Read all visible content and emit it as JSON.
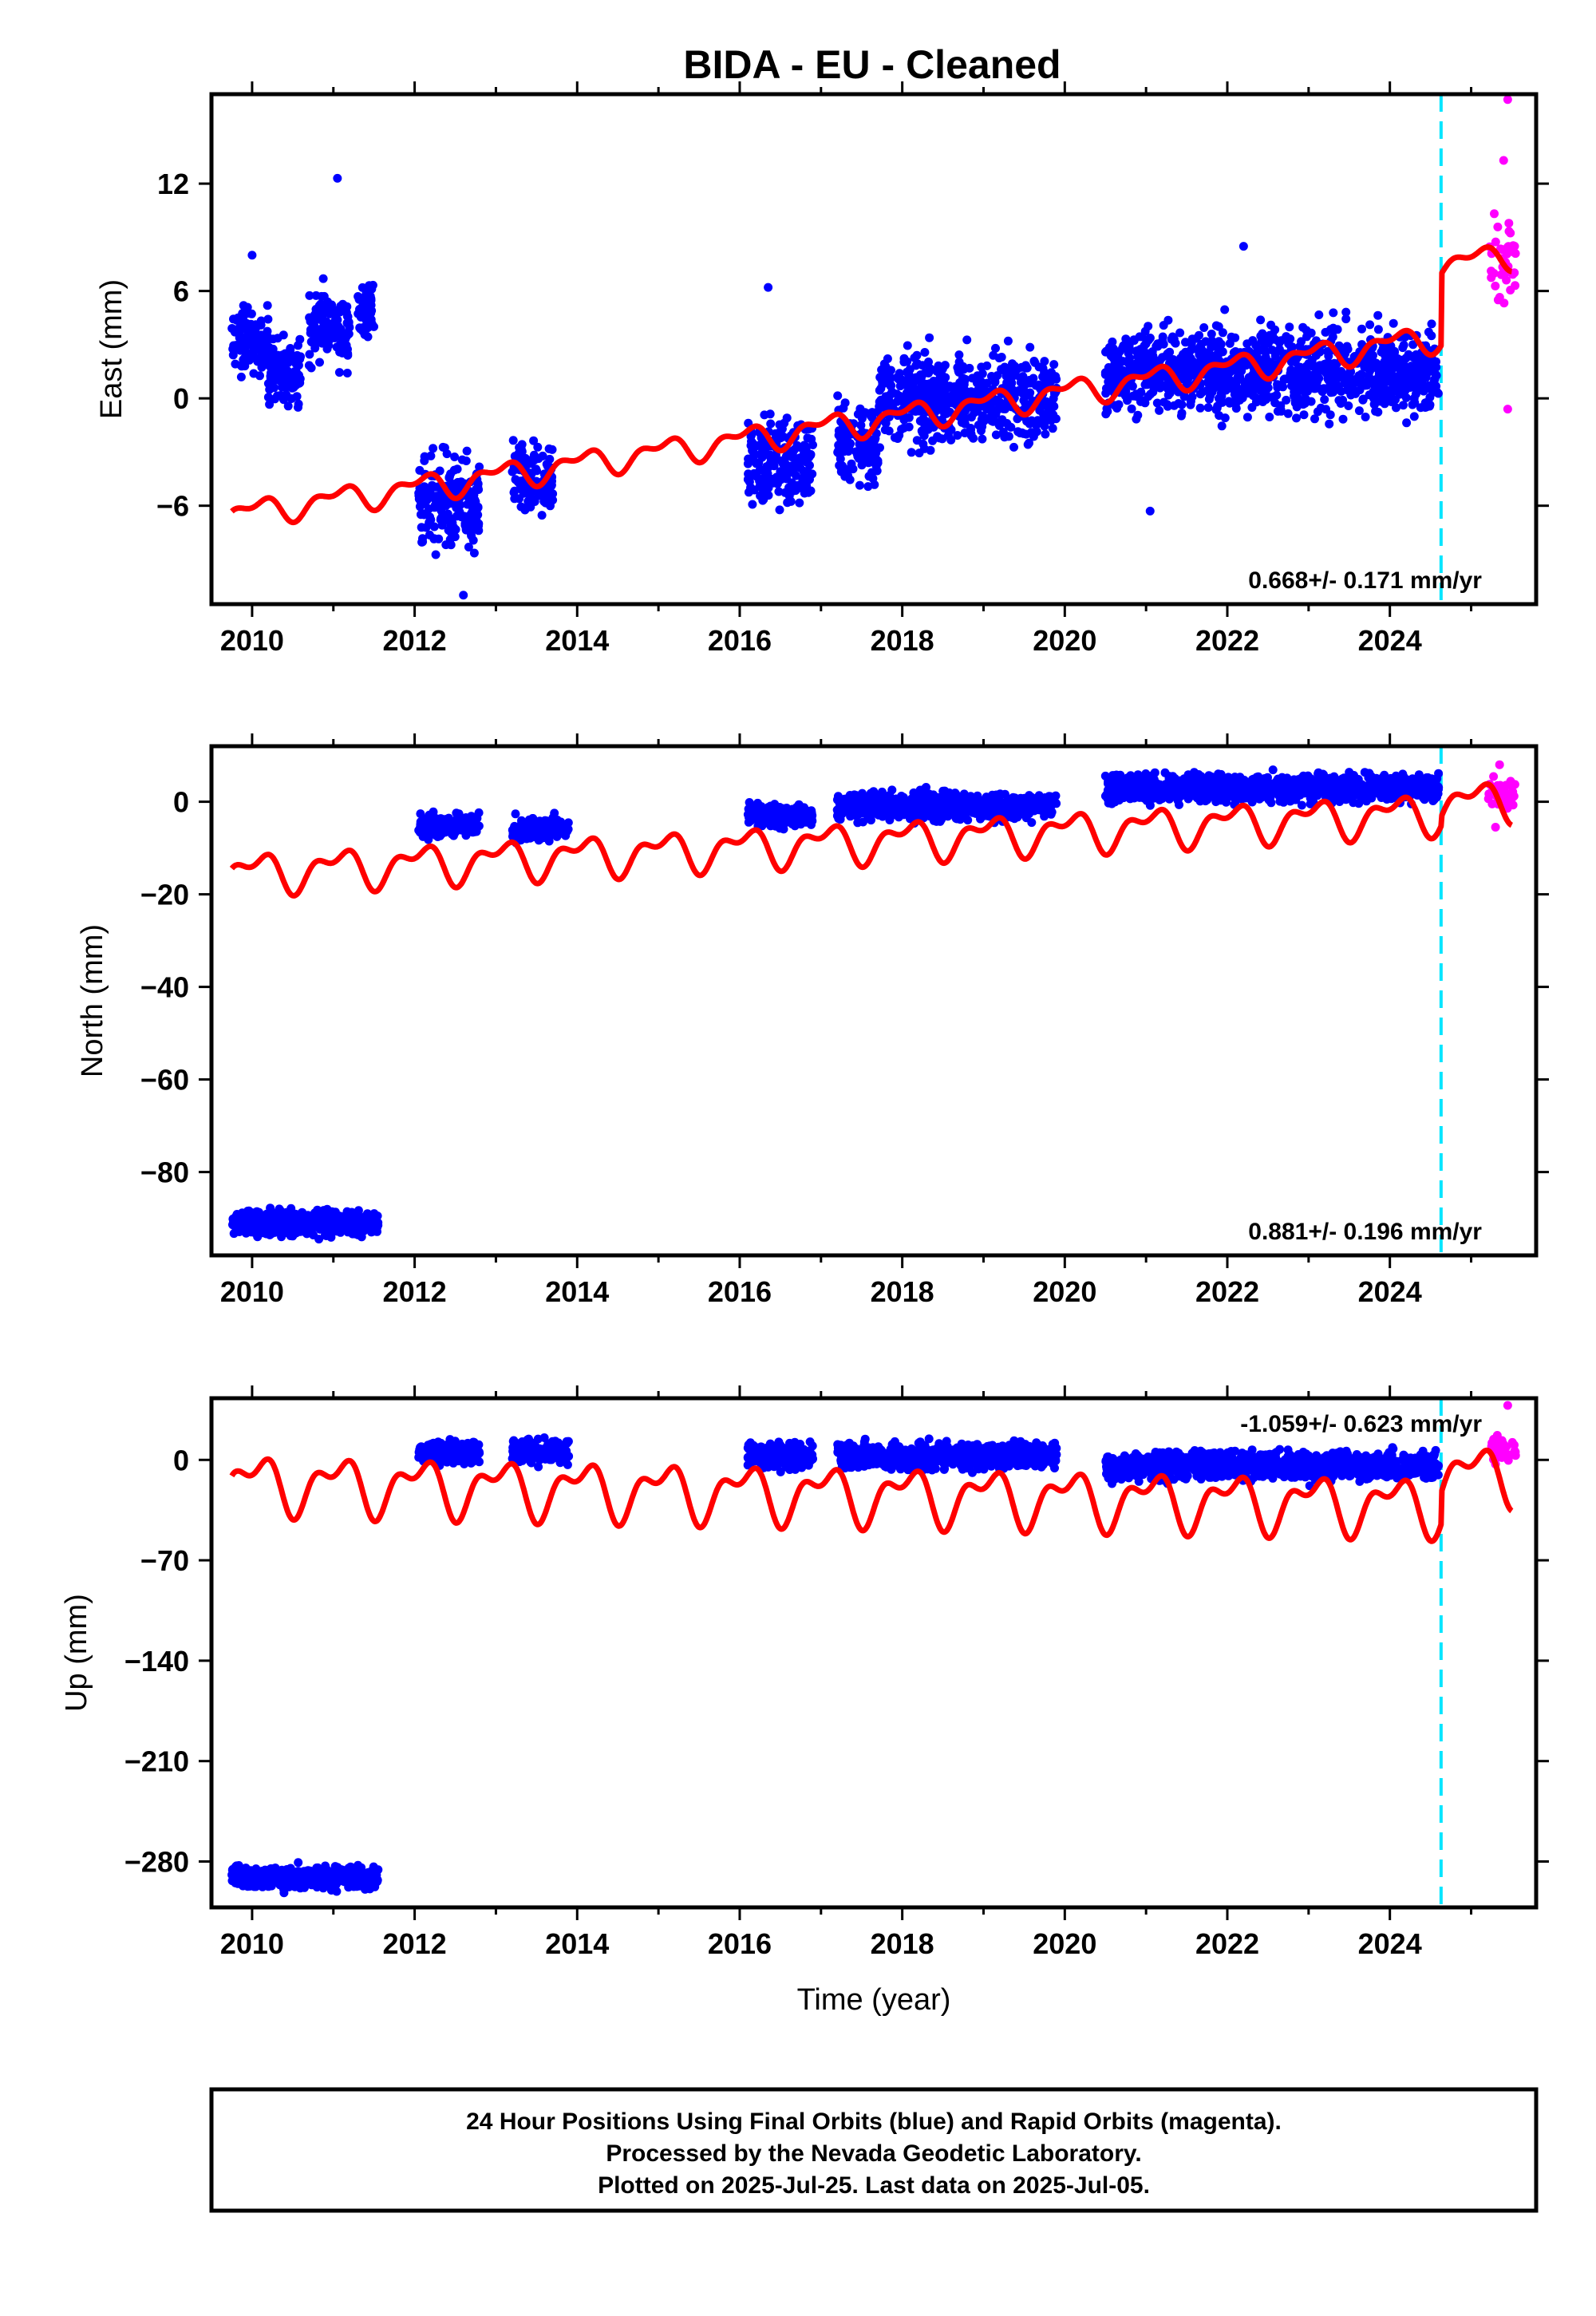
{
  "title": "BIDA  - EU - Cleaned",
  "colors": {
    "final_orbits": "#0000ff",
    "rapid_orbits": "#ff00ff",
    "model": "#ff0000",
    "reference_line": "#00e5ff",
    "frame": "#000000"
  },
  "footer": {
    "line1": "24 Hour Positions Using Final Orbits (blue) and Rapid Orbits (magenta).",
    "line2": "Processed by the Nevada Geodetic Laboratory.",
    "line3": "Plotted on 2025-Jul-25. Last data on 2025-Jul-05."
  },
  "chart_data": [
    {
      "type": "scatter",
      "ylabel": "East (mm)",
      "rate": "0.668+/- 0.171 mm/yr",
      "xlim": [
        2009.5,
        2025.8
      ],
      "ylim": [
        -11.5,
        17
      ],
      "xticks": [
        2010,
        2012,
        2014,
        2016,
        2018,
        2020,
        2022,
        2024
      ],
      "yticks": [
        -6,
        0,
        6,
        12
      ],
      "reference_line_x": 2024.63,
      "final_orbit_clusters": [
        {
          "x": [
            2009.75,
            2010.2
          ],
          "y_center": 3.2,
          "y_spread": 3.0
        },
        {
          "x": [
            2010.2,
            2010.6
          ],
          "y_center": 1.5,
          "y_spread": 3.0
        },
        {
          "x": [
            2010.7,
            2011.2
          ],
          "y_center": 4.0,
          "y_spread": 3.5
        },
        {
          "x": [
            2011.3,
            2011.5
          ],
          "y_center": 5.0,
          "y_spread": 2.5
        },
        {
          "x": [
            2012.05,
            2012.8
          ],
          "y_center": -6.0,
          "y_spread": 4.5
        },
        {
          "x": [
            2013.2,
            2013.7
          ],
          "y_center": -4.5,
          "y_spread": 3.0
        },
        {
          "x": [
            2016.1,
            2016.9
          ],
          "y_center": -3.5,
          "y_spread": 4.0
        },
        {
          "x": [
            2017.2,
            2017.7
          ],
          "y_center": -2.5,
          "y_spread": 4.0
        },
        {
          "x": [
            2017.7,
            2019.9
          ],
          "y_center": 0.0,
          "y_spread": 4.0
        },
        {
          "x": [
            2020.5,
            2024.6
          ],
          "y_center": 1.5,
          "y_spread": 4.0
        }
      ],
      "final_orbit_outliers": [
        {
          "x": 2011.05,
          "y": 12.3
        },
        {
          "x": 2010.0,
          "y": 8.0
        },
        {
          "x": 2016.35,
          "y": 6.2
        },
        {
          "x": 2022.2,
          "y": 8.5
        },
        {
          "x": 2012.6,
          "y": -11.0
        },
        {
          "x": 2021.05,
          "y": -6.3
        }
      ],
      "rapid_orbits": {
        "x": [
          2025.2,
          2025.55
        ],
        "y_center": 8.0,
        "y_spread": 5.0,
        "extremes": [
          {
            "x": 2025.45,
            "y": 16.7
          },
          {
            "x": 2025.45,
            "y": -0.6
          },
          {
            "x": 2025.4,
            "y": 13.3
          }
        ]
      },
      "model": {
        "x0": 2009.75,
        "x1": 2025.5,
        "y0": -6.5,
        "slope": 0.668,
        "seasonal_amp": 0.6,
        "jump": {
          "x": 2024.63,
          "size": 4.0
        }
      }
    },
    {
      "type": "scatter",
      "ylabel": "North (mm)",
      "rate": "0.881+/- 0.196 mm/yr",
      "xlim": [
        2009.5,
        2025.8
      ],
      "ylim": [
        -98,
        12
      ],
      "xticks": [
        2010,
        2012,
        2014,
        2016,
        2018,
        2020,
        2022,
        2024
      ],
      "yticks": [
        -80,
        -60,
        -40,
        -20,
        0
      ],
      "reference_line_x": 2024.63,
      "final_orbit_clusters": [
        {
          "x": [
            2009.75,
            2011.55
          ],
          "y_center": -91,
          "y_spread": 4.5
        },
        {
          "x": [
            2012.05,
            2012.8
          ],
          "y_center": -5.0,
          "y_spread": 4.0
        },
        {
          "x": [
            2013.2,
            2013.9
          ],
          "y_center": -6.0,
          "y_spread": 4.0
        },
        {
          "x": [
            2016.1,
            2016.9
          ],
          "y_center": -3.0,
          "y_spread": 4.0
        },
        {
          "x": [
            2017.2,
            2019.9
          ],
          "y_center": -1.0,
          "y_spread": 5.0
        },
        {
          "x": [
            2020.5,
            2024.6
          ],
          "y_center": 3.0,
          "y_spread": 5.0
        }
      ],
      "final_orbit_outliers": [],
      "rapid_orbits": {
        "x": [
          2025.2,
          2025.55
        ],
        "y_center": 2.0,
        "y_spread": 6.0,
        "extremes": [
          {
            "x": 2025.35,
            "y": 8.0
          },
          {
            "x": 2025.3,
            "y": -5.5
          }
        ]
      },
      "model": {
        "x0": 2009.75,
        "x1": 2025.5,
        "y0": -15.5,
        "slope": 0.881,
        "seasonal_amp": 3.5,
        "jump": {
          "x": 2024.63,
          "size": 2.0
        }
      }
    },
    {
      "type": "scatter",
      "ylabel": "Up (mm)",
      "xlabel": "Time (year)",
      "rate": "-1.059+/- 0.623 mm/yr",
      "xlim": [
        2009.5,
        2025.8
      ],
      "ylim": [
        -312,
        43
      ],
      "xticks": [
        2010,
        2012,
        2014,
        2016,
        2018,
        2020,
        2022,
        2024
      ],
      "yticks": [
        -280,
        -210,
        -140,
        -70,
        0
      ],
      "reference_line_x": 2024.63,
      "final_orbit_clusters": [
        {
          "x": [
            2009.75,
            2011.55
          ],
          "y_center": -291,
          "y_spread": 13
        },
        {
          "x": [
            2012.05,
            2012.8
          ],
          "y_center": 6,
          "y_spread": 14
        },
        {
          "x": [
            2013.2,
            2013.9
          ],
          "y_center": 6,
          "y_spread": 14
        },
        {
          "x": [
            2016.1,
            2016.9
          ],
          "y_center": 3,
          "y_spread": 15
        },
        {
          "x": [
            2017.2,
            2019.9
          ],
          "y_center": 3,
          "y_spread": 15
        },
        {
          "x": [
            2020.5,
            2024.6
          ],
          "y_center": -4,
          "y_spread": 16
        }
      ],
      "final_orbit_outliers": [],
      "rapid_orbits": {
        "x": [
          2025.2,
          2025.55
        ],
        "y_center": 7,
        "y_spread": 14,
        "extremes": [
          {
            "x": 2025.45,
            "y": 38
          },
          {
            "x": 2025.3,
            "y": -3
          }
        ]
      },
      "model": {
        "x0": 2009.75,
        "x1": 2025.5,
        "y0": -16,
        "slope": -1.059,
        "seasonal_amp": 16,
        "jump": {
          "x": 2024.63,
          "size": 22
        }
      }
    }
  ]
}
